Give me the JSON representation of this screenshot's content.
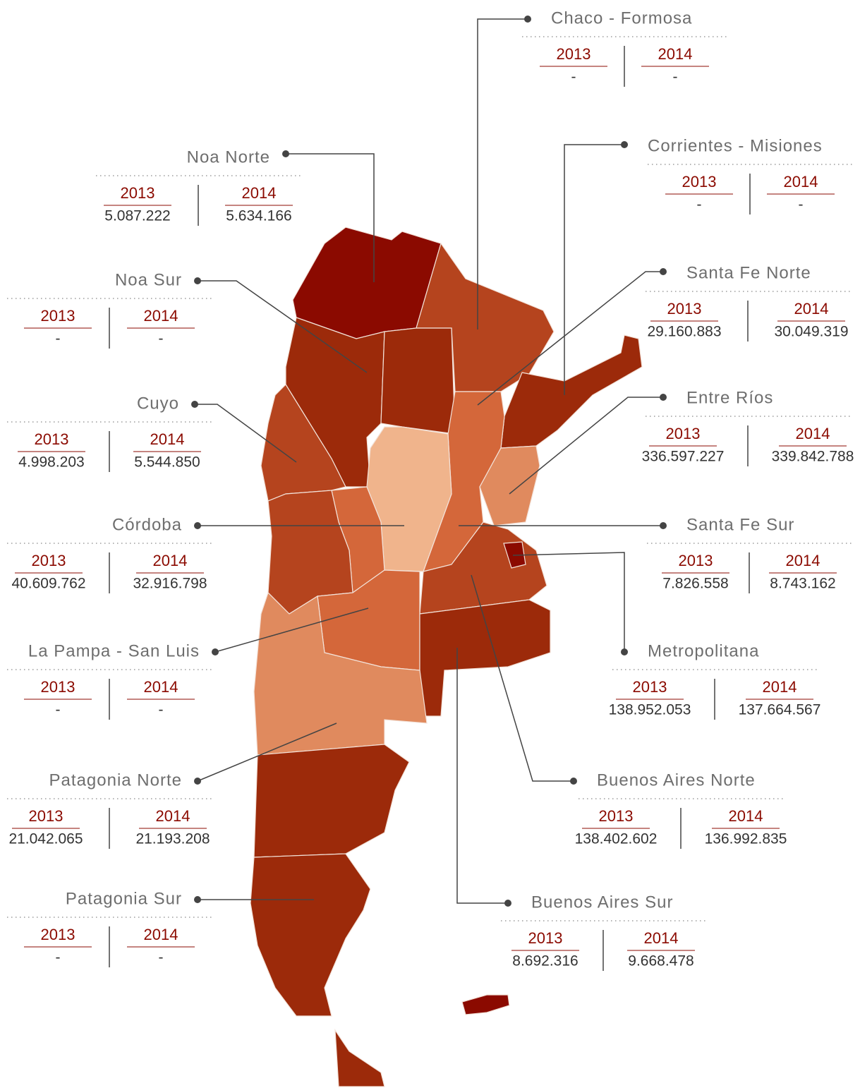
{
  "years": [
    "2013",
    "2014"
  ],
  "regions": [
    {
      "name": "Chaco - Formosa",
      "values": [
        "-",
        "-"
      ]
    },
    {
      "name": "Noa Norte",
      "values": [
        "5.087.222",
        "5.634.166"
      ]
    },
    {
      "name": "Corrientes - Misiones",
      "values": [
        "-",
        "-"
      ]
    },
    {
      "name": "Noa Sur",
      "values": [
        "-",
        "-"
      ]
    },
    {
      "name": "Santa Fe Norte",
      "values": [
        "29.160.883",
        "30.049.319"
      ]
    },
    {
      "name": "Cuyo",
      "values": [
        "4.998.203",
        "5.544.850"
      ]
    },
    {
      "name": "Entre Ríos",
      "values": [
        "336.597.227",
        "339.842.788"
      ]
    },
    {
      "name": "Córdoba",
      "values": [
        "40.609.762",
        "32.916.798"
      ]
    },
    {
      "name": "Santa Fe Sur",
      "values": [
        "7.826.558",
        "8.743.162"
      ]
    },
    {
      "name": "La Pampa - San Luis",
      "values": [
        "-",
        "-"
      ]
    },
    {
      "name": "Metropolitana",
      "values": [
        "138.952.053",
        "137.664.567"
      ]
    },
    {
      "name": "Patagonia Norte",
      "values": [
        "21.042.065",
        "21.193.208"
      ]
    },
    {
      "name": "Buenos Aires Norte",
      "values": [
        "138.402.602",
        "136.992.835"
      ]
    },
    {
      "name": "Patagonia Sur",
      "values": [
        "-",
        "-"
      ]
    },
    {
      "name": "Buenos Aires Sur",
      "values": [
        "8.692.316",
        "9.668.478"
      ]
    }
  ]
}
